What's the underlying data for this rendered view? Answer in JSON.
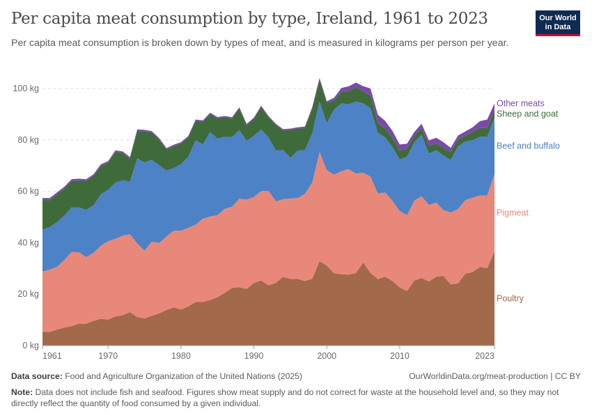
{
  "header": {
    "title": "Per capita meat consumption by type, Ireland, 1961 to 2023",
    "subtitle": "Per capita meat consumption is broken down by types of meat, and is measured in kilograms per person per year."
  },
  "logo": {
    "line1": "Our World",
    "line2": "in Data",
    "bg": "#0f2b52",
    "accent": "#c8102e"
  },
  "footer": {
    "source_label": "Data source:",
    "source_text": "Food and Agriculture Organization of the United Nations (2025)",
    "url_text": "OurWorldinData.org/meat-production | CC BY",
    "note_label": "Note:",
    "note_text": "Data does not include fish and seafood. Figures show meat supply and do not correct for waste at the household level and, so they may not directly reflect the quantity of food consumed by a given individual."
  },
  "chart_data": {
    "type": "area",
    "stacked": true,
    "x": [
      1961,
      1962,
      1963,
      1964,
      1965,
      1966,
      1967,
      1968,
      1969,
      1970,
      1971,
      1972,
      1973,
      1974,
      1975,
      1976,
      1977,
      1978,
      1979,
      1980,
      1981,
      1982,
      1983,
      1984,
      1985,
      1986,
      1987,
      1988,
      1989,
      1990,
      1991,
      1992,
      1993,
      1994,
      1995,
      1996,
      1997,
      1998,
      1999,
      2000,
      2001,
      2002,
      2003,
      2004,
      2005,
      2006,
      2007,
      2008,
      2009,
      2010,
      2011,
      2012,
      2013,
      2014,
      2015,
      2016,
      2017,
      2018,
      2019,
      2020,
      2021,
      2022,
      2023
    ],
    "xticks": [
      "1961",
      "1970",
      "1980",
      "1990",
      "2000",
      "2010",
      "2023"
    ],
    "yticks": [
      "0 kg",
      "20 kg",
      "40 kg",
      "60 kg",
      "80 kg",
      "100 kg"
    ],
    "ylim": [
      0,
      100
    ],
    "grid": true,
    "legend_placement": "right, inline labels",
    "series": [
      {
        "name": "Poultry",
        "color": "#a2694a",
        "values": [
          5.4,
          5.3,
          6.2,
          7.0,
          7.6,
          8.5,
          8.5,
          9.6,
          10.4,
          10.1,
          11.3,
          11.8,
          13.0,
          11.1,
          10.5,
          11.6,
          12.5,
          13.8,
          14.9,
          14.0,
          15.2,
          16.9,
          17.0,
          17.7,
          18.8,
          20.5,
          22.4,
          22.7,
          22.0,
          24.4,
          25.3,
          23.4,
          24.4,
          26.7,
          25.9,
          25.9,
          25.1,
          26.0,
          32.8,
          31.1,
          28.1,
          27.7,
          27.6,
          28.2,
          32.3,
          28.2,
          25.8,
          26.8,
          25.1,
          22.6,
          21.2,
          25.3,
          26.3,
          24.9,
          26.8,
          27.1,
          23.8,
          24.2,
          27.9,
          28.6,
          30.6,
          30.1,
          36.6
        ]
      },
      {
        "name": "Pigmeat",
        "color": "#e8887a",
        "values": [
          23.4,
          24.2,
          24.4,
          26.3,
          28.8,
          27.8,
          25.9,
          26.5,
          28.4,
          30.5,
          30.2,
          30.9,
          30.3,
          28.6,
          26.4,
          28.8,
          27.4,
          28.6,
          29.8,
          30.7,
          30.6,
          30.1,
          32.4,
          32.5,
          31.9,
          32.7,
          31.6,
          34.4,
          34.8,
          33.4,
          34.8,
          36.8,
          31.7,
          30.2,
          31.3,
          31.5,
          33.9,
          37.4,
          42.5,
          37.1,
          38.4,
          40.1,
          41.0,
          38.7,
          35.0,
          37.5,
          33.4,
          32.7,
          31.2,
          29.7,
          29.5,
          31.1,
          31.8,
          29.8,
          28.8,
          25.6,
          28.0,
          28.9,
          28.7,
          28.9,
          27.8,
          28.3,
          30.1
        ]
      },
      {
        "name": "Beef and buffalo",
        "color": "#4d82c6",
        "values": [
          16.3,
          16.6,
          17.4,
          17.2,
          17.4,
          17.5,
          18.4,
          18.4,
          20.0,
          20.0,
          21.9,
          21.6,
          20.5,
          33.1,
          34.3,
          31.9,
          30.2,
          25.7,
          24.3,
          25.9,
          27.7,
          32.8,
          28.9,
          32.8,
          29.8,
          28.0,
          27.1,
          26.7,
          22.8,
          23.8,
          23.9,
          20.8,
          19.8,
          19.2,
          15.8,
          18.4,
          17.1,
          19.1,
          19.6,
          18.3,
          25.3,
          26.4,
          25.2,
          28.0,
          26.9,
          26.6,
          23.6,
          21.5,
          20.9,
          20.1,
          22.8,
          22.7,
          24.0,
          20.0,
          20.4,
          21.2,
          20.4,
          24.4,
          22.8,
          22.4,
          22.8,
          22.9,
          21.9
        ]
      },
      {
        "name": "Sheep and goat",
        "color": "#3f6b3b",
        "values": [
          11.5,
          10.5,
          10.8,
          10.5,
          10.2,
          10.4,
          11.2,
          11.4,
          11.0,
          10.5,
          11.9,
          10.6,
          8.9,
          10.7,
          12.1,
          10.5,
          10.0,
          8.2,
          8.6,
          8.0,
          7.5,
          7.6,
          8.8,
          7.1,
          7.9,
          7.6,
          7.2,
          8.4,
          6.1,
          6.6,
          8.8,
          7.8,
          9.9,
          7.6,
          10.9,
          8.6,
          8.6,
          9.7,
          8.7,
          7.9,
          3.6,
          4.5,
          5.2,
          5.6,
          4.6,
          5.0,
          3.6,
          3.4,
          3.6,
          3.4,
          3.1,
          2.4,
          2.5,
          3.0,
          2.6,
          2.9,
          3.1,
          2.6,
          2.3,
          3.3,
          3.4,
          3.3,
          2.9
        ]
      },
      {
        "name": "Other meats",
        "color": "#7b4aa6",
        "values": [
          0.8,
          0.8,
          0.8,
          0.8,
          0.7,
          0.7,
          0.7,
          0.7,
          0.7,
          0.6,
          0.6,
          0.6,
          0.6,
          0.6,
          0.6,
          0.6,
          0.6,
          0.5,
          0.5,
          0.5,
          0.5,
          0.5,
          0.5,
          0.5,
          0.5,
          0.5,
          0.5,
          0.5,
          0.5,
          0.5,
          0.5,
          0.5,
          0.5,
          0.5,
          0.5,
          0.5,
          0.5,
          0.5,
          0.5,
          0.6,
          1.0,
          1.5,
          1.8,
          1.8,
          2.1,
          2.7,
          3.4,
          3.0,
          2.7,
          2.4,
          1.9,
          1.6,
          1.7,
          2.1,
          2.2,
          2.3,
          1.6,
          1.6,
          1.6,
          1.7,
          2.7,
          3.3,
          2.7
        ]
      }
    ]
  }
}
